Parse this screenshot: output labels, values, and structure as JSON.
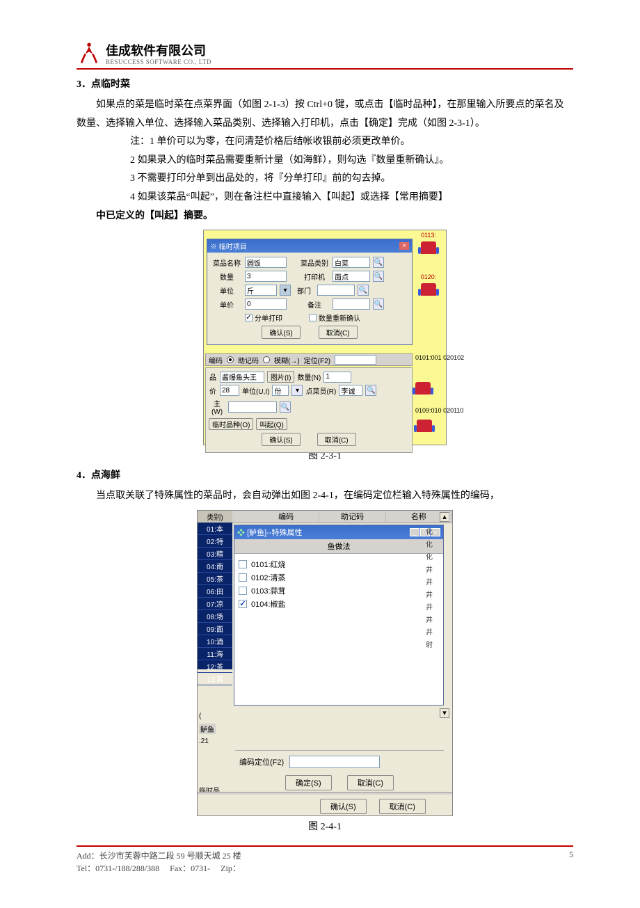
{
  "header": {
    "company_zh": "佳成软件有限公司",
    "company_en": "BESUCCESS SOFTWARE CO., LTD"
  },
  "sec3": {
    "heading": "3．点临时菜",
    "para": "如果点的菜是临时菜在点菜界面（如图 2-1-3）按 Ctrl+0 键，或点击【临时品种】，在那里输入所要点的菜名及数量、选择输入单位、选择输入菜品类别、选择输入打印机，点击【确定】完成（如图 2-3-1）。",
    "notes": {
      "n1": "注：1 单价可以为零，在问清楚价格后结帐收银前必须更改单价。",
      "n2": "2 如果录入的临时菜品需要重新计量（如海鲜），则勾选『数量重新确认』。",
      "n3": "3 不需要打印分单到出品处的，将『分单打印』前的勾去掉。",
      "n4": "4 如果该菜品“叫起”，则在备注栏中直接输入【叫起】或选择【常用摘要】",
      "n4b": "中已定义的【叫起】摘要。"
    },
    "fig_caption": "图 2-3-1"
  },
  "sec4": {
    "heading": "4．点海鲜",
    "para": "当点取关联了特殊属性的菜品时，会自动弹出如图 2-4-1，在编码定位栏输入特殊属性的编码，",
    "fig_caption": "图 2-4-1"
  },
  "footer": {
    "addr": "Add：长沙市芙蓉中路二段 59 号顺天城 25 楼",
    "tel": "Tel：0731-/188/288/388",
    "fax": "Fax：0731-",
    "zip": "Zip：",
    "pagenum": "5"
  },
  "shot1": {
    "dialog_title": "※ 临时项目",
    "close_x": "×",
    "labels": {
      "name": "菜品名称",
      "category": "菜品类别",
      "qty": "数量",
      "printer": "打印机",
      "unit": "单位",
      "dept": "部门",
      "price": "单价",
      "remark": "备注"
    },
    "values": {
      "name": "圆饭",
      "category": "白菜",
      "qty": "3",
      "printer": "面点",
      "unit": "斤",
      "dept": "",
      "price": "0",
      "remark": ""
    },
    "chk_print": "分单打印",
    "chk_reconfirm": "数量重新确认",
    "btn_ok": "确认(S)",
    "btn_cancel": "取消(C)",
    "mid": {
      "code": "编码",
      "mnem": "助记码",
      "fuzzy": "模糊(→)",
      "locate": "定位(F2)"
    },
    "panel2": {
      "item": "酱爆鱼头王",
      "pic": "图片(I)",
      "qtylbl": "数量(N)",
      "qtyval": "1",
      "unitlbl": "单位(U,I)",
      "unit": "份",
      "chef": "点菜员(R)",
      "chefv": "李诚",
      "pricelbl": "价",
      "price": "28",
      "wlabel": "主(W)",
      "temp": "临时品种(O)",
      "call": "叫起(Q)",
      "ok": "确认(S)",
      "cancel": "取消(C)"
    },
    "right_codes": {
      "a": "0113:",
      "b": "0120:",
      "c": "0101:001",
      "c2": "020102",
      "d": "0109:010",
      "d2": "020110"
    }
  },
  "shot2": {
    "top_headers": {
      "code": "编码",
      "mnem": "助记码",
      "name": "名称"
    },
    "left": {
      "hd": "类别)",
      "items": [
        "01:本",
        "02:特",
        "03:精",
        "04:南",
        "05:茶",
        "06:田",
        "07:凉",
        "08:场",
        "09:面",
        "10:酒",
        "11:海",
        "12:茶",
        "13:其"
      ]
    },
    "win_title": "[鲈鱼]--特殊属性",
    "group_header": "鱼做法",
    "options": [
      {
        "code": "0101:红烧",
        "checked": false
      },
      {
        "code": "0102:清蒸",
        "checked": false
      },
      {
        "code": "0103:蒜茸",
        "checked": false
      },
      {
        "code": "0104:椒盐",
        "checked": true
      }
    ],
    "farright": [
      "化",
      "化",
      "化",
      "井",
      "井",
      "井",
      "井",
      "井",
      "井",
      "射"
    ],
    "locate_label": "编码定位(F2)",
    "btn_ok_inner": "确定(S)",
    "btn_cancel_inner": "取消(C)",
    "btn_ok_outer": "确认(S)",
    "btn_cancel_outer": "取消(C)",
    "left_numA": "(",
    "left_numB": "鲈鱼",
    "left_numC": ".21",
    "left_numD": "临时品"
  }
}
